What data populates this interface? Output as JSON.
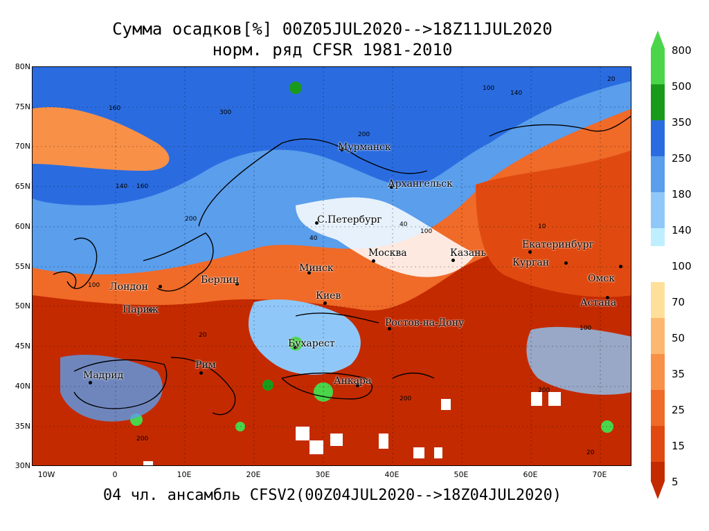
{
  "header": {
    "title_line1": "Сумма осадков[%] 00Z05JUL2020-->18Z11JUL2020",
    "title_line2": "норм. ряд CFSR 1981-2010"
  },
  "footer": {
    "text": "04 чл. ансамбль CFSV2(00Z04JUL2020-->18Z04JUL2020)"
  },
  "map": {
    "lat_labels": [
      "80N",
      "75N",
      "70N",
      "65N",
      "60N",
      "55N",
      "50N",
      "45N",
      "40N",
      "35N",
      "30N"
    ],
    "lon_labels": [
      "10W",
      "0",
      "10E",
      "20E",
      "30E",
      "40E",
      "50E",
      "60E",
      "70E"
    ],
    "cities": [
      {
        "name": "Мурманск"
      },
      {
        "name": "Архангельск"
      },
      {
        "name": "С.Петербург"
      },
      {
        "name": "Москва"
      },
      {
        "name": "Казань"
      },
      {
        "name": "Екатеринбург"
      },
      {
        "name": "Курган"
      },
      {
        "name": "Омск"
      },
      {
        "name": "Астана"
      },
      {
        "name": "Минск"
      },
      {
        "name": "Киев"
      },
      {
        "name": "Берлин"
      },
      {
        "name": "Лондон"
      },
      {
        "name": "Париж"
      },
      {
        "name": "Ростов-на-Дону"
      },
      {
        "name": "Бухарест"
      },
      {
        "name": "Рим"
      },
      {
        "name": "Мадрид"
      },
      {
        "name": "Анкара"
      }
    ]
  },
  "legend": {
    "colors": {
      "c5": "#c42a00",
      "c15": "#e04a10",
      "c25": "#f06a28",
      "c35": "#f89048",
      "c50": "#fcb870",
      "c70": "#fee09a",
      "c100": "#ffffff",
      "c140": "#bfefff",
      "c180": "#8fc8f8",
      "c250": "#5a9eec",
      "c350": "#2a6ce0",
      "c500": "#1a9a1a",
      "c800": "#4ad54a"
    },
    "labels": [
      "800",
      "500",
      "350",
      "250",
      "180",
      "140",
      "100",
      "70",
      "50",
      "35",
      "25",
      "15",
      "5"
    ]
  }
}
